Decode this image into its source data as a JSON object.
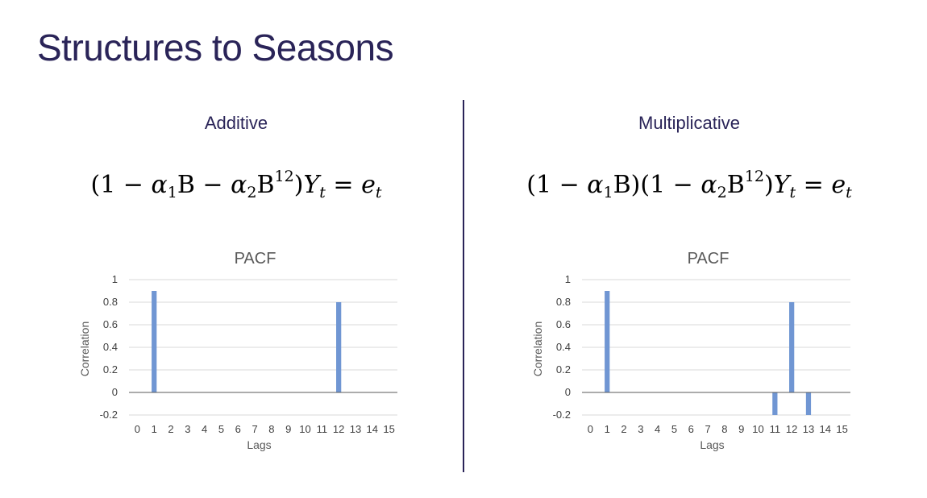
{
  "slide": {
    "title": "Structures to Seasons"
  },
  "panels": [
    {
      "heading": "Additive",
      "formula": {
        "open": "(1 − ",
        "a1": "α",
        "s1": "1",
        "mid1": "B − ",
        "a2": "α",
        "s2": "2",
        "b2": "B",
        "p2": "12",
        "close": ")",
        "y": "Y",
        "yt": "t",
        "eq": " = ",
        "e": "e",
        "et": "t"
      }
    },
    {
      "heading": "Multiplicative",
      "formula": {
        "open": "(1 − ",
        "a1": "α",
        "s1": "1",
        "mid1": "B)(1 − ",
        "a2": "α",
        "s2": "2",
        "b2": "B",
        "p2": "12",
        "close": ")",
        "y": "Y",
        "yt": "t",
        "eq": " = ",
        "e": "e",
        "et": "t"
      }
    }
  ],
  "colors": {
    "bar": "#7096d3",
    "title": "#2a2458",
    "grid": "#d9d9d9",
    "axis": "#595959",
    "text": "#595959"
  },
  "chart_data": [
    {
      "type": "bar",
      "title": "PACF",
      "xlabel": "Lags",
      "ylabel": "Correlation",
      "categories": [
        "0",
        "1",
        "2",
        "3",
        "4",
        "5",
        "6",
        "7",
        "8",
        "9",
        "10",
        "11",
        "12",
        "13",
        "14",
        "15"
      ],
      "values": [
        0,
        0.9,
        0,
        0,
        0,
        0,
        0,
        0,
        0,
        0,
        0,
        0,
        0.8,
        0,
        0,
        0
      ],
      "ylim": [
        -0.2,
        1
      ],
      "yticks": [
        "1",
        "0.8",
        "0.6",
        "0.4",
        "0.2",
        "0",
        "-0.2"
      ],
      "grid": true,
      "legend": "none"
    },
    {
      "type": "bar",
      "title": "PACF",
      "xlabel": "Lags",
      "ylabel": "Correlation",
      "categories": [
        "0",
        "1",
        "2",
        "3",
        "4",
        "5",
        "6",
        "7",
        "8",
        "9",
        "10",
        "11",
        "12",
        "13",
        "14",
        "15"
      ],
      "values": [
        0,
        0.9,
        0,
        0,
        0,
        0,
        0,
        0,
        0,
        0,
        0,
        -0.2,
        0.8,
        -0.2,
        0,
        0
      ],
      "ylim": [
        -0.2,
        1
      ],
      "yticks": [
        "1",
        "0.8",
        "0.6",
        "0.4",
        "0.2",
        "0",
        "-0.2"
      ],
      "grid": true,
      "legend": "none"
    }
  ]
}
